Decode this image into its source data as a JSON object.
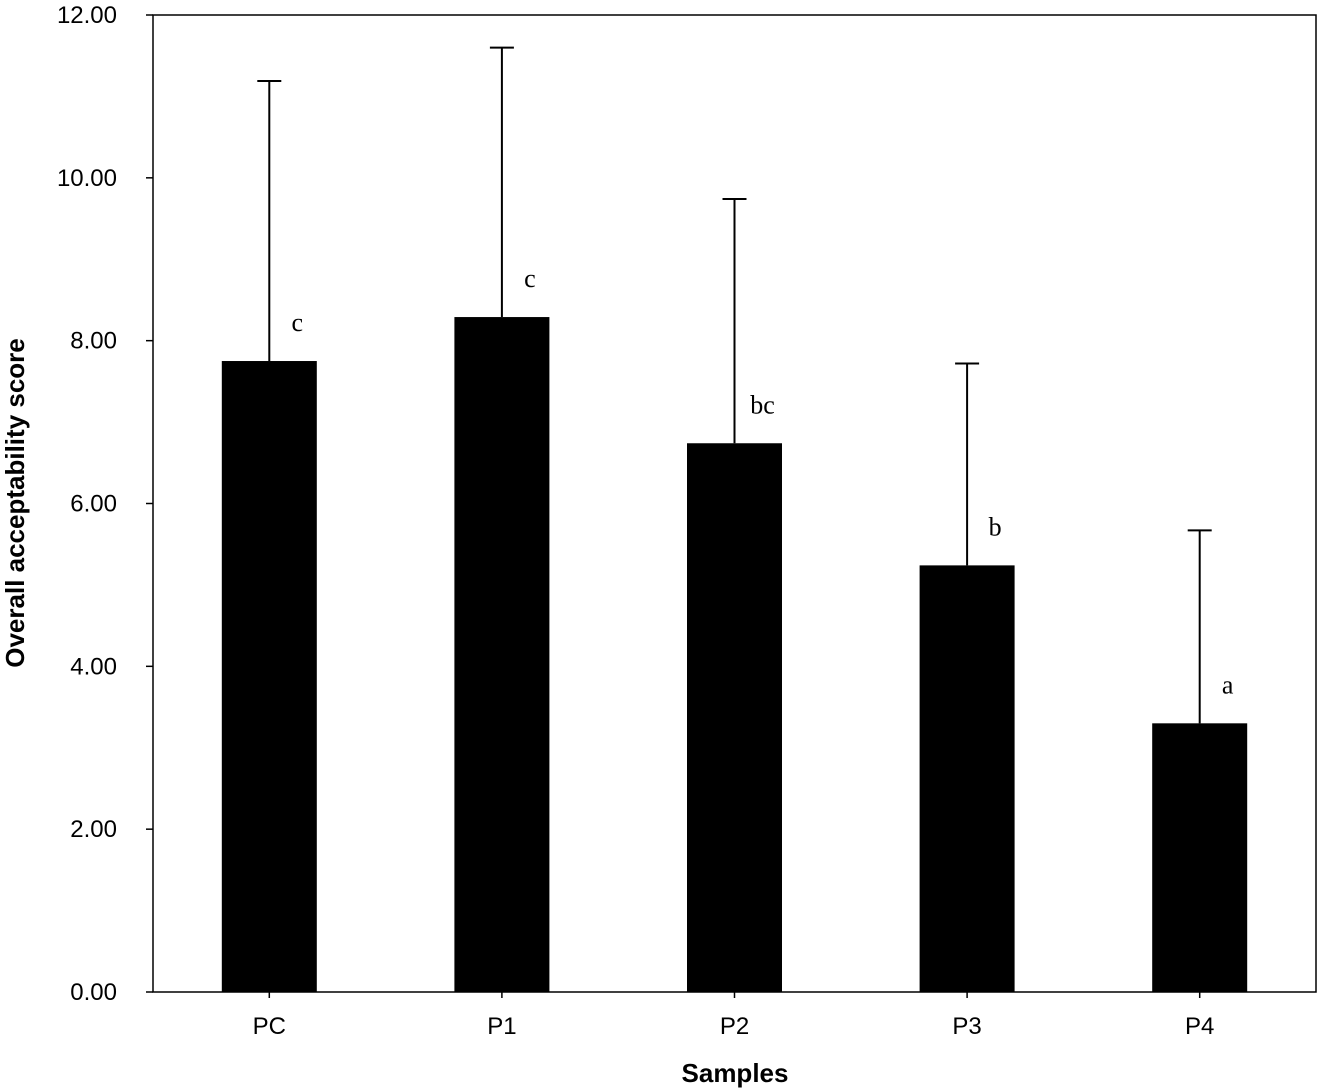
{
  "chart_data": {
    "type": "bar",
    "categories": [
      "PC",
      "P1",
      "P2",
      "P3",
      "P4"
    ],
    "values": [
      7.75,
      8.29,
      6.74,
      5.24,
      3.3
    ],
    "error_upper": [
      11.19,
      11.6,
      9.74,
      7.72,
      5.67
    ],
    "significance_labels": [
      "c",
      "c",
      "bc",
      "b",
      "a"
    ],
    "xlabel": "Samples",
    "ylabel": "Overall acceptability score",
    "ylim": [
      0,
      12
    ],
    "yticks": [
      "0.00",
      "2.00",
      "4.00",
      "6.00",
      "8.00",
      "10.00",
      "12.00"
    ],
    "bar_color": "#000000",
    "grid": false,
    "legend": "none"
  }
}
